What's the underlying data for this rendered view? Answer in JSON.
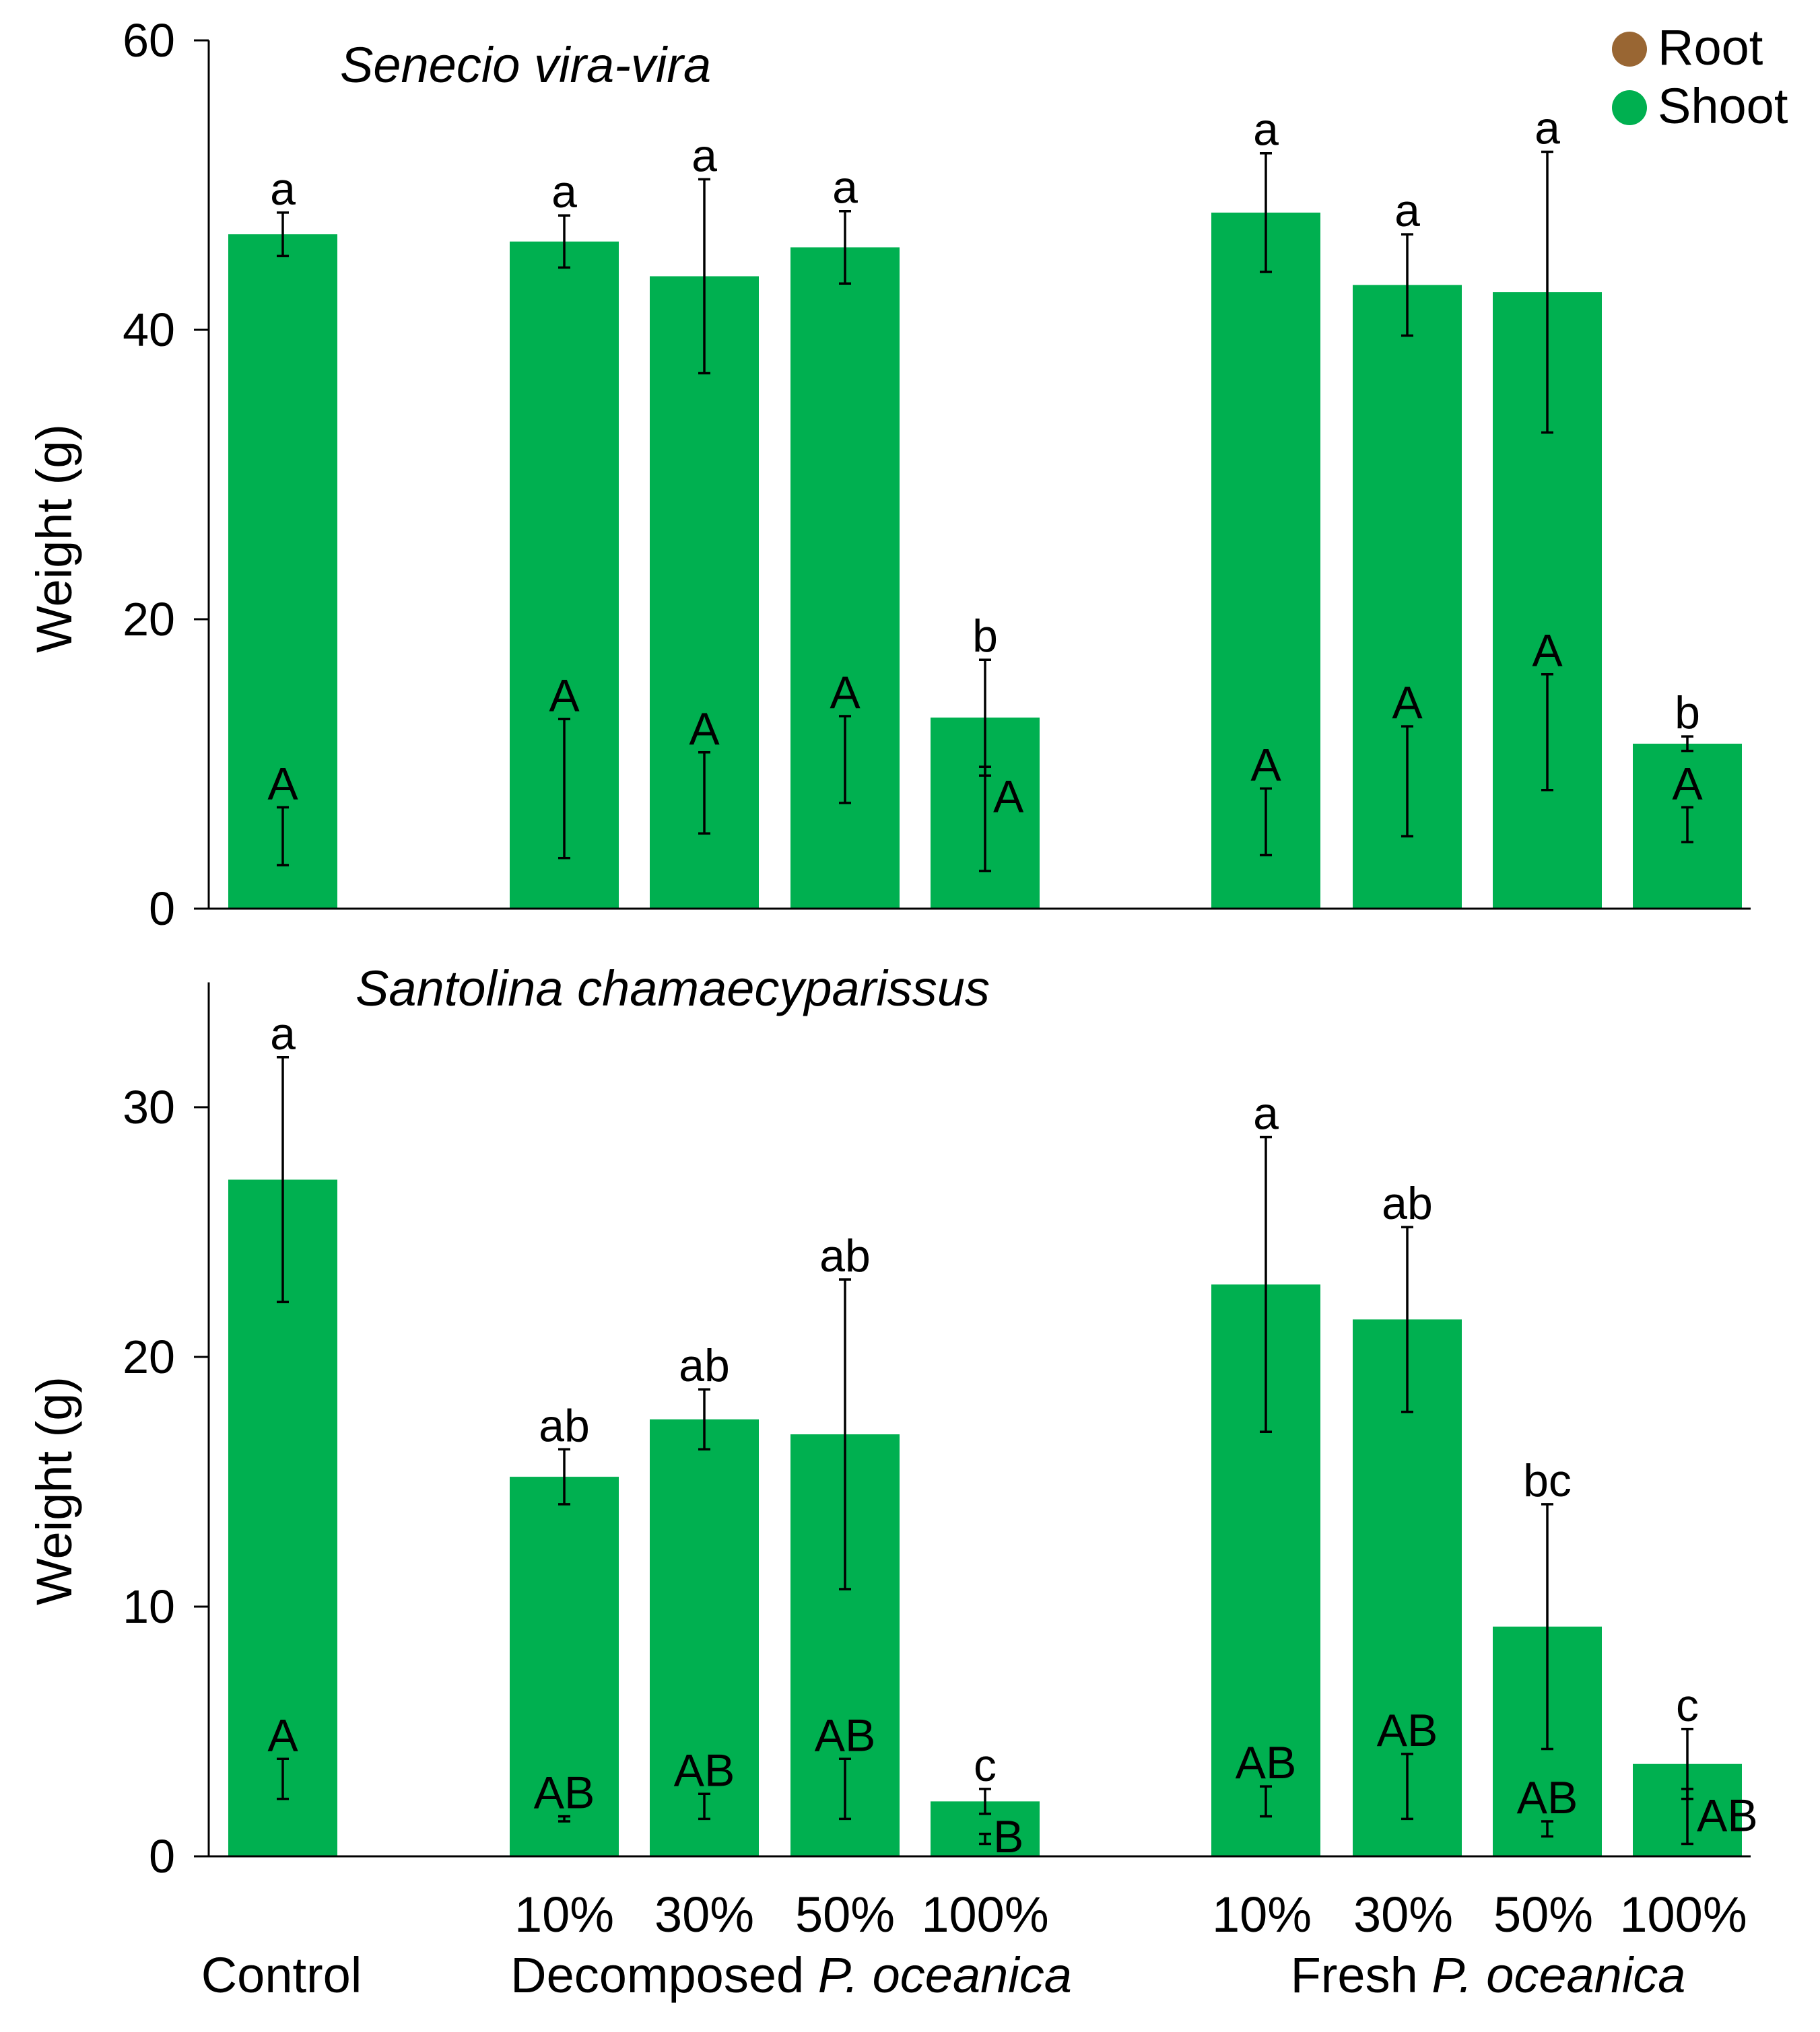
{
  "legend": {
    "items": [
      {
        "label": "Root",
        "color": "#996633"
      },
      {
        "label": "Shoot",
        "color": "#00b050"
      }
    ]
  },
  "axis_label": "Weight (g)",
  "x_groups": {
    "control": "Control",
    "decomposed": {
      "prefix": "Decomposed ",
      "italic": "P. oceanica"
    },
    "fresh": {
      "prefix": "Fresh ",
      "italic": "P. oceanica"
    }
  },
  "chart_data": [
    {
      "type": "bar",
      "stacked": true,
      "title": "Senecio vira-vira",
      "ylabel": "Weight (g)",
      "ylim": [
        0,
        60
      ],
      "yticks": [
        0,
        20,
        40,
        60
      ],
      "categories": [
        "Control",
        "10%",
        "30%",
        "50%",
        "100%",
        "10%",
        "30%",
        "50%",
        "100%"
      ],
      "groups": [
        "Control",
        "Decomposed P. oceanica",
        "Decomposed P. oceanica",
        "Decomposed P. oceanica",
        "Decomposed P. oceanica",
        "Fresh P. oceanica",
        "Fresh P. oceanica",
        "Fresh P. oceanica",
        "Fresh P. oceanica"
      ],
      "series": [
        {
          "name": "Root",
          "color": "#996633",
          "values": [
            5.0,
            8.3,
            8.0,
            10.3,
            6.2,
            6.0,
            8.8,
            12.2,
            5.8
          ],
          "errors": [
            2.0,
            4.8,
            2.8,
            3.0,
            3.6,
            2.3,
            3.8,
            4.0,
            1.2
          ],
          "letters": [
            "A",
            "A",
            "A",
            "A",
            "A",
            "A",
            "A",
            "A",
            "A"
          ]
        },
        {
          "name": "Shoot",
          "color": "#00b050",
          "values": [
            46.6,
            46.1,
            43.7,
            45.7,
            13.2,
            48.1,
            43.1,
            42.6,
            11.4
          ],
          "errors": [
            1.5,
            1.8,
            6.7,
            2.5,
            4.0,
            4.1,
            3.5,
            9.7,
            0.5
          ],
          "letters": [
            "a",
            "a",
            "a",
            "a",
            "b",
            "a",
            "a",
            "a",
            "b"
          ]
        }
      ]
    },
    {
      "type": "bar",
      "stacked": true,
      "title": "Santolina chamaecyparissus",
      "ylabel": "Weight (g)",
      "ylim": [
        0,
        35
      ],
      "yticks": [
        0,
        10,
        20,
        30
      ],
      "categories": [
        "Control",
        "10%",
        "30%",
        "50%",
        "100%",
        "10%",
        "30%",
        "50%",
        "100%"
      ],
      "groups": [
        "Control",
        "Decomposed P. oceanica",
        "Decomposed P. oceanica",
        "Decomposed P. oceanica",
        "Decomposed P. oceanica",
        "Fresh P. oceanica",
        "Fresh P. oceanica",
        "Fresh P. oceanica",
        "Fresh P. oceanica"
      ],
      "series": [
        {
          "name": "Root",
          "color": "#996633",
          "values": [
            3.1,
            1.5,
            2.0,
            2.7,
            0.7,
            2.2,
            2.8,
            1.1,
            1.6
          ],
          "errors": [
            0.8,
            0.1,
            0.5,
            1.2,
            0.2,
            0.6,
            1.3,
            0.3,
            1.1
          ],
          "letters": [
            "A",
            "AB",
            "AB",
            "AB",
            "B",
            "AB",
            "AB",
            "AB",
            "AB"
          ]
        },
        {
          "name": "Shoot",
          "color": "#00b050",
          "values": [
            27.1,
            15.2,
            17.5,
            16.9,
            2.2,
            22.9,
            21.5,
            9.2,
            3.7
          ],
          "errors": [
            4.9,
            1.1,
            1.2,
            6.2,
            0.5,
            5.9,
            3.7,
            4.9,
            1.4
          ],
          "letters": [
            "a",
            "ab",
            "ab",
            "ab",
            "c",
            "a",
            "ab",
            "bc",
            "c"
          ]
        }
      ]
    }
  ]
}
